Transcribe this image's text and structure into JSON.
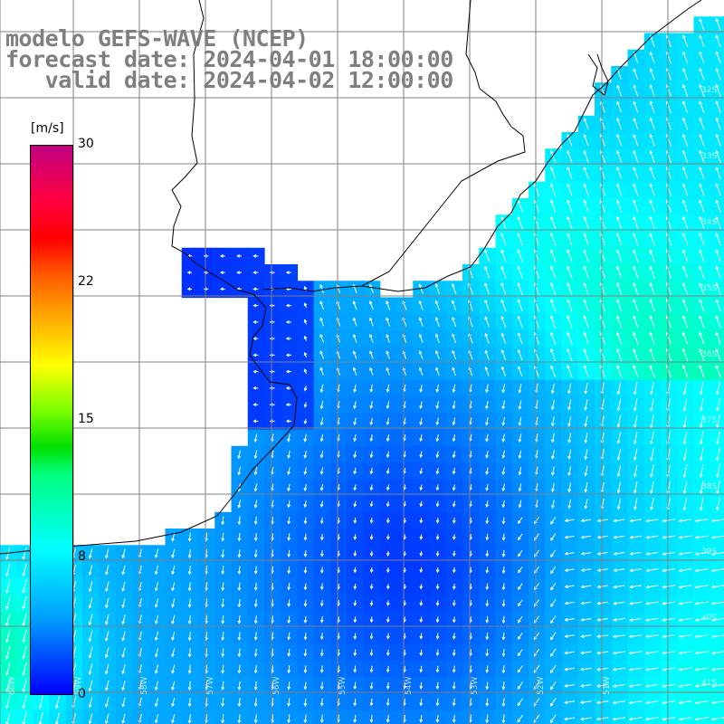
{
  "title": {
    "line1": "modelo GEFS-WAVE (NCEP)",
    "line2": "forecast date: 2024-04-01 18:00:00",
    "line3": "   valid date: 2024-04-02 12:00:00"
  },
  "colorbar": {
    "unit": "[m/s]",
    "ticks": [
      "30",
      "22",
      "15",
      "8",
      "0"
    ],
    "tick_values": [
      30,
      22,
      15,
      8,
      0
    ],
    "range": [
      0,
      30
    ],
    "colors": [
      "#0000ff",
      "#00a0ff",
      "#00ffff",
      "#00ff80",
      "#00e000",
      "#80ff00",
      "#ffff00",
      "#ffb000",
      "#ff6000",
      "#ff0000",
      "#c00080"
    ]
  },
  "map": {
    "lat_labels": [
      "32S",
      "33S",
      "34S",
      "35S",
      "36S",
      "37S",
      "38S",
      "39S",
      "40S",
      "41S"
    ],
    "lon_labels": [
      "60W",
      "59W",
      "58W",
      "57W",
      "56W",
      "55W",
      "54W",
      "53W",
      "52W",
      "51W"
    ],
    "land_color": "#ffffff",
    "arrow_color": "#ffffff",
    "grid_color": "#808080"
  }
}
